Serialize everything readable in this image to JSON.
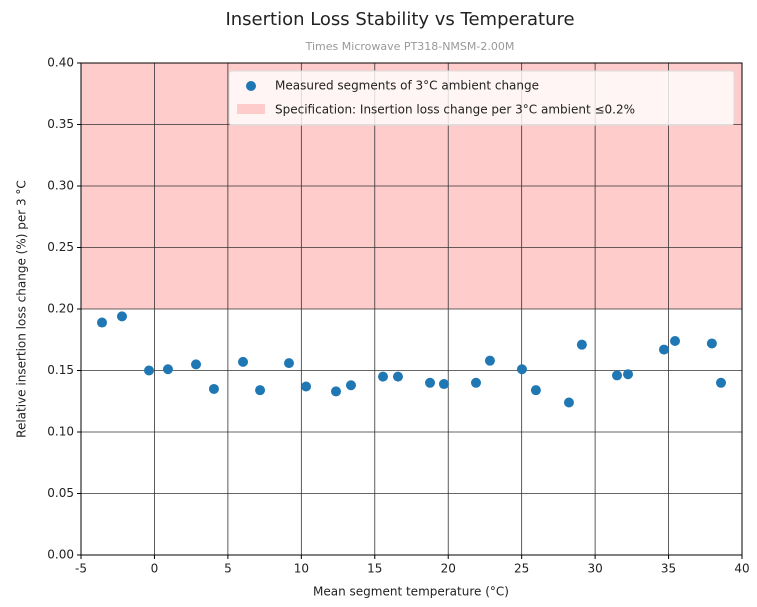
{
  "chart_data": {
    "type": "scatter",
    "title": "Insertion Loss Stability vs Temperature",
    "subtitle": "Times Microwave PT318-NMSM-2.00M",
    "x_label": "Mean segment temperature (°C)",
    "y_label": "Relative insertion loss change (%) per 3 °C",
    "series": [
      {
        "name": "Measured segments of 3°C ambient change",
        "color": "#1f77b4",
        "x": [
          -3.57,
          -2.21,
          -0.37,
          0.92,
          2.83,
          4.05,
          6.03,
          7.19,
          9.16,
          10.32,
          12.36,
          13.38,
          15.56,
          16.58,
          18.76,
          19.71,
          21.89,
          22.84,
          25.02,
          25.97,
          28.22,
          29.1,
          31.49,
          32.24,
          34.69,
          35.44,
          37.95,
          38.57
        ],
        "values": [
          0.189,
          0.194,
          0.15,
          0.151,
          0.155,
          0.135,
          0.157,
          0.134,
          0.156,
          0.137,
          0.133,
          0.138,
          0.145,
          0.145,
          0.14,
          0.139,
          0.14,
          0.158,
          0.151,
          0.134,
          0.124,
          0.171,
          0.146,
          0.147,
          0.167,
          0.174,
          0.172,
          0.14
        ]
      }
    ],
    "bands": [
      {
        "name": "Specification: Insertion loss change per 3°C ambient  ≤0.2%",
        "color": "#ffcccc",
        "from": 0.2,
        "to": 0.4
      }
    ],
    "xlim": [
      -5,
      40
    ],
    "xticks": [
      -5,
      0,
      5,
      10,
      15,
      20,
      25,
      30,
      35,
      40
    ],
    "ylim": [
      0,
      0.4
    ],
    "yticks": [
      {
        "value": 0,
        "label": "0.00"
      },
      {
        "value": 0.05,
        "label": "0.05"
      },
      {
        "value": 0.1,
        "label": "0.10"
      },
      {
        "value": 0.15,
        "label": "0.15"
      },
      {
        "value": 0.2,
        "label": "0.20"
      },
      {
        "value": 0.25,
        "label": "0.25"
      },
      {
        "value": 0.3,
        "label": "0.30"
      },
      {
        "value": 0.35,
        "label": "0.35"
      },
      {
        "value": 0.4,
        "label": "0.40"
      }
    ],
    "grid": true,
    "legend": "upper right"
  }
}
